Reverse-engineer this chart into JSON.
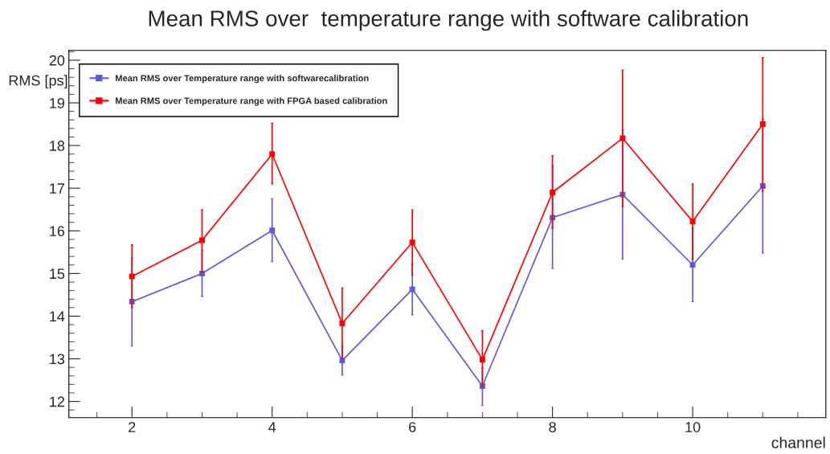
{
  "chart_data": {
    "type": "line",
    "title": "Mean RMS over  temperature range with software calibration",
    "xlabel": "channel",
    "ylabel": "RMS [ps]",
    "x": [
      2,
      3,
      4,
      5,
      6,
      7,
      8,
      9,
      10,
      11
    ],
    "xlim": [
      1.1,
      11.9
    ],
    "xticks": [
      2,
      4,
      6,
      8,
      10
    ],
    "ylim": [
      11.62,
      20.23
    ],
    "yticks": [
      12,
      13,
      14,
      15,
      16,
      17,
      18,
      19,
      20
    ],
    "grid": false,
    "legend": "top left",
    "marker": "square",
    "line_style": "solid",
    "series": [
      {
        "name": "Mean RMS over Temperature range with softwarecalibration",
        "color": "#5b5bdb",
        "values": [
          14.34,
          15.0,
          16.01,
          12.96,
          14.63,
          12.36,
          16.31,
          16.85,
          15.2,
          17.05
        ],
        "errors": [
          [
            13.3,
            15.36
          ],
          [
            14.46,
            15.55
          ],
          [
            15.28,
            16.75
          ],
          [
            12.62,
            13.3
          ],
          [
            14.03,
            15.23
          ],
          [
            11.91,
            12.79
          ],
          [
            15.12,
            17.52
          ],
          [
            15.34,
            18.37
          ],
          [
            14.34,
            16.07
          ],
          [
            15.48,
            18.62
          ]
        ]
      },
      {
        "name": "Mean RMS over Temperature range with FPGA based calibration",
        "color": "#ff0000",
        "values": [
          14.93,
          15.78,
          17.8,
          13.83,
          15.73,
          12.98,
          16.9,
          18.17,
          16.22,
          18.5
        ],
        "errors": [
          [
            14.2,
            15.67
          ],
          [
            15.03,
            16.49
          ],
          [
            17.1,
            18.52
          ],
          [
            13.0,
            14.66
          ],
          [
            14.96,
            16.49
          ],
          [
            12.36,
            13.66
          ],
          [
            16.06,
            17.76
          ],
          [
            16.57,
            19.77
          ],
          [
            15.33,
            17.1
          ],
          [
            16.93,
            20.06
          ]
        ]
      }
    ]
  }
}
